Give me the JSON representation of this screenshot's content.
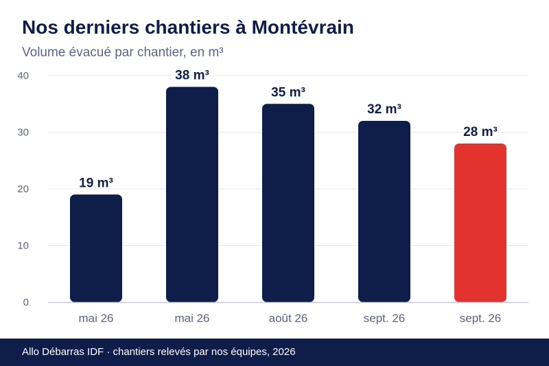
{
  "title": "Nos derniers chantiers à Montévrain",
  "subtitle": "Volume évacué par chantier, en m³",
  "footer": "Allo Débarras IDF · chantiers relevés par nos équipes, 2026",
  "colors": {
    "bar": "#0f1d4b",
    "highlight": "#e3332f",
    "axis_text": "#5c6483",
    "grid": "#e8e9ef",
    "baseline": "#c8cad8",
    "footer_bg": "#0f1d4b"
  },
  "chart_data": {
    "type": "bar",
    "categories": [
      "mai 26",
      "mai 26",
      "août 26",
      "sept. 26",
      "sept. 26"
    ],
    "values": [
      19,
      38,
      35,
      32,
      28
    ],
    "data_labels": [
      "19 m³",
      "38 m³",
      "35 m³",
      "32 m³",
      "28 m³"
    ],
    "highlight_index": 4,
    "ylim": [
      0,
      40
    ],
    "yticks": [
      "0",
      "10",
      "20",
      "30",
      "40"
    ],
    "grid": true
  }
}
